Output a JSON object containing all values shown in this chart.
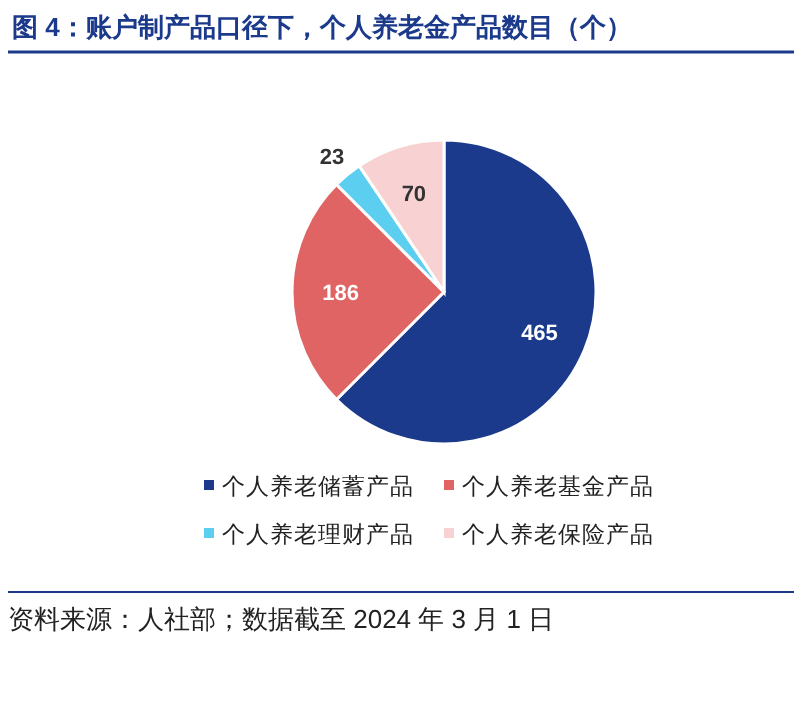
{
  "chart_data": {
    "type": "pie",
    "title": "图 4：账户制产品口径下，个人养老金产品数目（个）",
    "categories": [
      "个人养老储蓄产品",
      "个人养老基金产品",
      "个人养老理财产品",
      "个人养老保险产品"
    ],
    "values": [
      465,
      186,
      23,
      70
    ],
    "colors": [
      "#1c3a8c",
      "#e06464",
      "#5ccff0",
      "#f8d2d2"
    ],
    "data_labels": true,
    "legend": "bottom",
    "annotations": [
      "资料来源：人社部；数据截至 2024 年 3 月 1 日"
    ]
  }
}
